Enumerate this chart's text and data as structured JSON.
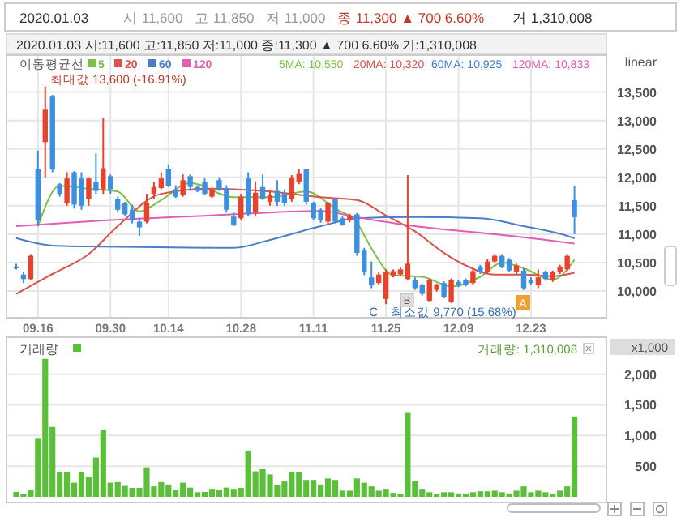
{
  "chart_data": [
    {
      "type": "candlestick",
      "title": "2020.01.03",
      "subtitle": "2020.01.03 시:11,600 고:11,850 저:11,000 종:11,300 ▲ 700 6.60% 거:1,310,008",
      "categories": [
        null,
        null,
        null,
        "09.16",
        null,
        null,
        null,
        null,
        null,
        null,
        null,
        null,
        null,
        "09.30",
        null,
        null,
        null,
        null,
        null,
        null,
        null,
        "10.14",
        null,
        null,
        null,
        null,
        null,
        null,
        null,
        null,
        null,
        "10.28",
        null,
        null,
        null,
        null,
        null,
        null,
        null,
        null,
        null,
        "11.11",
        null,
        null,
        null,
        null,
        null,
        null,
        null,
        null,
        null,
        "11.25",
        null,
        null,
        null,
        null,
        null,
        null,
        null,
        null,
        null,
        "12.09",
        null,
        null,
        null,
        null,
        null,
        null,
        null,
        null,
        null,
        "12.23",
        null,
        null,
        null,
        null,
        null,
        null
      ],
      "ylim": [
        9530,
        14150
      ],
      "yticks": [
        {
          "value": 10000,
          "label": "10,000"
        },
        {
          "value": 10500,
          "label": "10,500"
        },
        {
          "value": 11000,
          "label": "11,000"
        },
        {
          "value": 11500,
          "label": "11,500"
        },
        {
          "value": 12000,
          "label": "12,000"
        },
        {
          "value": 12500,
          "label": "12,500"
        },
        {
          "value": 13000,
          "label": "13,000"
        },
        {
          "value": 13500,
          "label": "13,500"
        }
      ],
      "grid": true,
      "legend": "top left",
      "legend_title": "이동평균선",
      "series": [
        {
          "type": "line",
          "name": "5",
          "color": "#7cc04a",
          "values": [
            null,
            null,
            null,
            11140,
            null,
            null,
            11850,
            null,
            null,
            null,
            11800,
            null,
            null,
            null,
            11750,
            null,
            null,
            11400,
            null,
            null,
            11600,
            null,
            null,
            null,
            11900,
            null,
            null,
            null,
            null,
            null,
            11650,
            null,
            null,
            null,
            null,
            11650,
            null,
            null,
            null,
            null,
            11750,
            null,
            null,
            null,
            11450,
            null,
            null,
            11200,
            null,
            10750,
            null,
            null,
            10280,
            null,
            null,
            null,
            10250,
            null,
            null,
            null,
            10080,
            null,
            null,
            null,
            10250,
            null,
            null,
            10500,
            null,
            null,
            10400,
            null,
            null,
            null,
            10200,
            null,
            null,
            10550
          ]
        },
        {
          "type": "line",
          "name": "20",
          "color": "#d9534f",
          "values": [
            9950,
            null,
            null,
            null,
            null,
            10300,
            null,
            null,
            null,
            null,
            10650,
            null,
            null,
            null,
            11140,
            null,
            null,
            null,
            null,
            null,
            11710,
            null,
            null,
            null,
            null,
            null,
            null,
            11800,
            null,
            null,
            null,
            null,
            null,
            null,
            null,
            11750,
            null,
            null,
            null,
            null,
            null,
            null,
            11650,
            null,
            null,
            null,
            null,
            11600,
            null,
            null,
            null,
            11330,
            null,
            null,
            null,
            11050,
            null,
            null,
            null,
            10670,
            null,
            null,
            10450,
            null,
            null,
            null,
            10290,
            null,
            null,
            null,
            10290,
            null,
            null,
            null,
            10260,
            null,
            null,
            10320
          ]
        },
        {
          "type": "line",
          "name": "60",
          "color": "#4a7fc8",
          "values": [
            10930,
            null,
            null,
            null,
            null,
            10800,
            null,
            null,
            null,
            null,
            null,
            null,
            10780,
            null,
            null,
            null,
            null,
            null,
            null,
            null,
            null,
            null,
            null,
            null,
            null,
            null,
            null,
            null,
            null,
            null,
            10760,
            null,
            null,
            null,
            null,
            10900,
            null,
            null,
            null,
            null,
            null,
            null,
            11140,
            null,
            null,
            null,
            null,
            11280,
            null,
            null,
            null,
            null,
            null,
            null,
            null,
            11300,
            null,
            null,
            null,
            null,
            null,
            null,
            null,
            null,
            11280,
            null,
            null,
            null,
            null,
            null,
            11140,
            null,
            null,
            null,
            null,
            null,
            10970,
            10925
          ]
        },
        {
          "type": "line",
          "name": "120",
          "color": "#e05fb0",
          "values": [
            11140,
            null,
            null,
            null,
            null,
            null,
            null,
            null,
            null,
            null,
            null,
            null,
            11240,
            null,
            null,
            null,
            null,
            null,
            null,
            null,
            null,
            null,
            null,
            null,
            null,
            null,
            null,
            11330,
            null,
            null,
            null,
            null,
            null,
            null,
            null,
            null,
            null,
            null,
            null,
            null,
            null,
            null,
            11410,
            null,
            null,
            null,
            null,
            11300,
            null,
            null,
            null,
            null,
            null,
            null,
            null,
            11140,
            null,
            null,
            null,
            null,
            null,
            null,
            null,
            null,
            null,
            null,
            11000,
            null,
            null,
            null,
            null,
            null,
            null,
            10900,
            null,
            null,
            null,
            10833
          ]
        },
        {
          "type": "candlestick",
          "ohlc": [
            [
              10430,
              10480,
              10380,
              10400
            ],
            [
              10290,
              10330,
              10140,
              10210
            ],
            [
              10210,
              10650,
              10190,
              10620
            ],
            [
              12140,
              12470,
              11140,
              11240
            ],
            [
              12620,
              13600,
              12000,
              13190
            ],
            [
              13420,
              13450,
              12090,
              12140
            ],
            [
              11880,
              11900,
              11660,
              11710
            ],
            [
              11540,
              12090,
              11500,
              11980
            ],
            [
              12090,
              12110,
              11450,
              11520
            ],
            [
              11980,
              12090,
              11430,
              11500
            ],
            [
              11620,
              12000,
              11500,
              11980
            ],
            [
              11920,
              12420,
              11710,
              11760
            ],
            [
              11790,
              13040,
              11710,
              12160
            ],
            [
              12020,
              12050,
              11710,
              11790
            ],
            [
              11620,
              11660,
              11380,
              11430
            ],
            [
              11540,
              11570,
              11330,
              11350
            ],
            [
              11430,
              11520,
              11190,
              11240
            ],
            [
              11220,
              11290,
              10970,
              11120
            ],
            [
              11220,
              11710,
              11190,
              11540
            ],
            [
              11710,
              11920,
              11620,
              11830
            ],
            [
              11810,
              12090,
              11790,
              11980
            ],
            [
              12140,
              12230,
              11830,
              11850
            ],
            [
              11790,
              11860,
              11640,
              11660
            ],
            [
              11690,
              12050,
              11660,
              11950
            ],
            [
              12020,
              12050,
              11760,
              11830
            ],
            [
              11830,
              11860,
              11740,
              11760
            ],
            [
              11920,
              11980,
              11690,
              11710
            ],
            [
              11660,
              11810,
              11640,
              11790
            ],
            [
              11950,
              12000,
              11760,
              11790
            ],
            [
              11810,
              11860,
              11380,
              11430
            ],
            [
              11310,
              11380,
              11140,
              11160
            ],
            [
              11280,
              11710,
              11250,
              11660
            ],
            [
              11980,
              12090,
              11310,
              11350
            ],
            [
              11380,
              11930,
              11330,
              11730
            ],
            [
              11830,
              12050,
              11600,
              11620
            ],
            [
              11570,
              11760,
              11500,
              11690
            ],
            [
              11760,
              11950,
              11500,
              11570
            ],
            [
              11710,
              11790,
              11500,
              11540
            ],
            [
              11620,
              12040,
              11570,
              12000
            ],
            [
              11920,
              12140,
              11880,
              12060
            ],
            [
              12140,
              12140,
              11520,
              11570
            ],
            [
              11540,
              11570,
              11250,
              11280
            ],
            [
              11430,
              11460,
              11200,
              11240
            ],
            [
              11220,
              11570,
              11160,
              11540
            ],
            [
              11620,
              11620,
              11190,
              11220
            ],
            [
              11280,
              11310,
              11150,
              11170
            ],
            [
              11240,
              11360,
              11210,
              11330
            ],
            [
              11350,
              11370,
              10620,
              10670
            ],
            [
              10710,
              10760,
              10280,
              10330
            ],
            [
              10240,
              10520,
              10050,
              10100
            ],
            [
              10140,
              10330,
              10110,
              10290
            ],
            [
              9860,
              10380,
              9770,
              10330
            ],
            [
              10270,
              10380,
              10240,
              10350
            ],
            [
              10290,
              10410,
              10260,
              10380
            ],
            [
              10210,
              12040,
              10190,
              10480
            ],
            [
              10190,
              10240,
              10020,
              10050
            ],
            [
              10100,
              10130,
              9920,
              9950
            ],
            [
              9830,
              10220,
              9800,
              10190
            ],
            [
              10020,
              10130,
              9990,
              10100
            ],
            [
              10140,
              10170,
              9870,
              9900
            ],
            [
              9810,
              10220,
              9790,
              10190
            ],
            [
              10160,
              10190,
              10070,
              10100
            ],
            [
              10190,
              10220,
              10080,
              10110
            ],
            [
              10140,
              10380,
              10110,
              10350
            ],
            [
              10430,
              10460,
              10300,
              10330
            ],
            [
              10330,
              10560,
              10300,
              10520
            ],
            [
              10520,
              10650,
              10490,
              10620
            ],
            [
              10620,
              10650,
              10400,
              10430
            ],
            [
              10550,
              10580,
              10330,
              10360
            ],
            [
              10330,
              10480,
              10300,
              10450
            ],
            [
              10360,
              10400,
              10020,
              10050
            ],
            [
              10190,
              10240,
              10110,
              10140
            ],
            [
              10100,
              10380,
              10050,
              10240
            ],
            [
              10330,
              10360,
              10180,
              10210
            ],
            [
              10190,
              10360,
              10160,
              10330
            ],
            [
              10330,
              10460,
              10300,
              10430
            ],
            [
              10380,
              10650,
              10350,
              10620
            ],
            [
              11600,
              11850,
              11000,
              11300
            ]
          ],
          "colors": [
            "#3d8fe0",
            "#3d8fe0",
            "#e8412c",
            "#3d8fe0",
            "#e8412c",
            "#3d8fe0",
            "#3d8fe0",
            "#e8412c",
            "#3d8fe0",
            "#3d8fe0",
            "#e8412c",
            "#3d8fe0",
            "#e8412c",
            "#3d8fe0",
            "#3d8fe0",
            "#3d8fe0",
            "#3d8fe0",
            "#3d8fe0",
            "#e8412c",
            "#e8412c",
            "#e8412c",
            "#3d8fe0",
            "#3d8fe0",
            "#e8412c",
            "#3d8fe0",
            "#3d8fe0",
            "#3d8fe0",
            "#e8412c",
            "#3d8fe0",
            "#3d8fe0",
            "#3d8fe0",
            "#e8412c",
            "#3d8fe0",
            "#e8412c",
            "#3d8fe0",
            "#e8412c",
            "#3d8fe0",
            "#3d8fe0",
            "#e8412c",
            "#e8412c",
            "#3d8fe0",
            "#3d8fe0",
            "#3d8fe0",
            "#e8412c",
            "#3d8fe0",
            "#3d8fe0",
            "#e8412c",
            "#3d8fe0",
            "#3d8fe0",
            "#3d8fe0",
            "#e8412c",
            "#e8412c",
            "#e8412c",
            "#e8412c",
            "#e8412c",
            "#3d8fe0",
            "#3d8fe0",
            "#e8412c",
            "#e8412c",
            "#3d8fe0",
            "#e8412c",
            "#3d8fe0",
            "#3d8fe0",
            "#e8412c",
            "#3d8fe0",
            "#e8412c",
            "#e8412c",
            "#3d8fe0",
            "#3d8fe0",
            "#e8412c",
            "#3d8fe0",
            "#3d8fe0",
            "#e8412c",
            "#3d8fe0",
            "#e8412c",
            "#e8412c",
            "#e8412c",
            "#3d8fe0"
          ]
        }
      ],
      "annotations": [
        "시 11,600",
        "고 11,850",
        "저 11,000",
        "종 11,300 ▲ 700 6.60%",
        "거 1,310,008",
        "5MA: 10,550",
        "20MA: 10,320",
        "60MA: 10,925",
        "120MA: 10,833",
        "linear",
        "최대값 13,600 (-16.91%)",
        "최소값 9,770 (15.68%)",
        "A",
        "B",
        "C"
      ]
    },
    {
      "type": "bar",
      "categories": [
        null,
        null,
        null,
        null,
        null,
        null,
        null,
        null,
        null,
        null,
        null,
        null,
        null,
        null,
        null,
        null,
        null,
        null,
        null,
        null,
        null,
        null,
        null,
        null,
        null,
        null,
        null,
        null,
        null,
        null,
        null,
        null,
        null,
        null,
        null,
        null,
        null,
        null,
        null,
        null,
        null,
        null,
        null,
        null,
        null,
        null,
        null,
        null,
        null,
        null,
        null,
        null,
        null,
        null,
        null,
        null,
        null,
        null,
        null,
        null,
        null,
        null,
        null,
        null,
        null,
        null,
        null,
        null,
        null,
        null,
        null,
        null,
        null,
        null,
        null,
        null,
        null,
        null
      ],
      "ylim": [
        0,
        2550
      ],
      "yticks": [
        500,
        {
          "value": 1000,
          "label": "1,000"
        },
        {
          "value": 1500,
          "label": "1,500"
        },
        {
          "value": 2000,
          "label": "2,000"
        }
      ],
      "ylabel": "x1,000",
      "grid": true,
      "legend": "top left",
      "series": [
        {
          "name": "거래량",
          "color": "#5cbf3a",
          "values": [
            80,
            40,
            110,
            960,
            2250,
            1140,
            410,
            410,
            230,
            410,
            330,
            640,
            1090,
            230,
            240,
            190,
            145,
            145,
            480,
            170,
            240,
            200,
            120,
            230,
            150,
            75,
            80,
            130,
            120,
            150,
            130,
            145,
            750,
            415,
            460,
            365,
            200,
            250,
            410,
            410,
            275,
            275,
            200,
            300,
            275,
            100,
            100,
            300,
            230,
            170,
            100,
            130,
            65,
            40,
            1380,
            260,
            130,
            75,
            40,
            75,
            75,
            55,
            55,
            75,
            90,
            90,
            100,
            75,
            55,
            100,
            170,
            75,
            100,
            75,
            55,
            100,
            170,
            1310
          ]
        }
      ],
      "annotations": [
        "거래량: 1,310,008"
      ]
    }
  ]
}
